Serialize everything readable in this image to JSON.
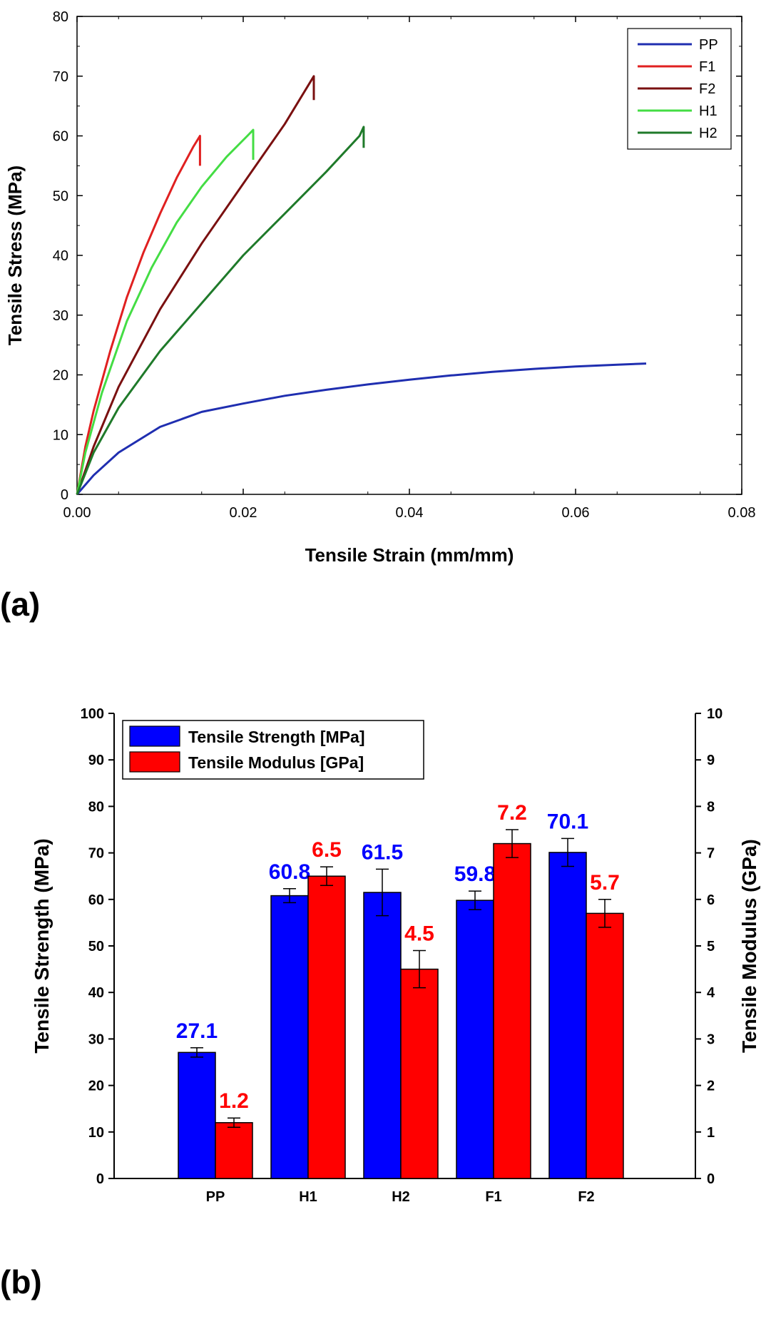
{
  "panels": {
    "a_label": "(a)",
    "b_label": "(b)"
  },
  "chart_data": [
    {
      "type": "line",
      "xlabel": "Tensile Strain (mm/mm)",
      "ylabel": "Tensile Stress (MPa)",
      "xlim": [
        0,
        0.08
      ],
      "ylim": [
        0,
        80
      ],
      "xticks": [
        "0.00",
        "0.02",
        "0.04",
        "0.06",
        "0.08"
      ],
      "yticks": [
        "0",
        "10",
        "20",
        "30",
        "40",
        "50",
        "60",
        "70",
        "80"
      ],
      "grid": false,
      "legend_position": "top-right",
      "series": [
        {
          "name": "PP",
          "color": "#1f2eb0",
          "x": [
            0,
            0.002,
            0.005,
            0.01,
            0.015,
            0.02,
            0.025,
            0.03,
            0.035,
            0.04,
            0.045,
            0.05,
            0.055,
            0.06,
            0.065,
            0.0685
          ],
          "y": [
            0,
            3.2,
            7.0,
            11.3,
            13.8,
            15.2,
            16.5,
            17.5,
            18.4,
            19.2,
            19.9,
            20.5,
            21.0,
            21.4,
            21.7,
            21.9
          ]
        },
        {
          "name": "F1",
          "color": "#e02020",
          "x": [
            0,
            0.001,
            0.002,
            0.004,
            0.006,
            0.008,
            0.01,
            0.012,
            0.014,
            0.0148,
            0.0148
          ],
          "y": [
            0,
            8,
            14,
            24,
            33,
            40.5,
            47,
            53,
            58.2,
            60,
            55
          ]
        },
        {
          "name": "F2",
          "color": "#7a1010",
          "x": [
            0,
            0.002,
            0.005,
            0.01,
            0.015,
            0.02,
            0.025,
            0.0285,
            0.0285
          ],
          "y": [
            0,
            8,
            18,
            31,
            42,
            52,
            62,
            70,
            66
          ]
        },
        {
          "name": "H1",
          "color": "#44dd44",
          "x": [
            0,
            0.001,
            0.003,
            0.006,
            0.009,
            0.012,
            0.015,
            0.018,
            0.0205,
            0.0212,
            0.0212
          ],
          "y": [
            0,
            7,
            17,
            29,
            38,
            45.5,
            51.5,
            56.5,
            60,
            61,
            56
          ]
        },
        {
          "name": "H2",
          "color": "#1f7a2a",
          "x": [
            0,
            0.002,
            0.005,
            0.01,
            0.015,
            0.02,
            0.025,
            0.03,
            0.034,
            0.0345,
            0.0345
          ],
          "y": [
            0,
            7,
            14.5,
            24,
            32,
            40,
            47,
            54,
            60,
            61.5,
            58
          ]
        }
      ]
    },
    {
      "type": "bar",
      "categories": [
        "PP",
        "H1",
        "H2",
        "F1",
        "F2"
      ],
      "ylabel": "Tensile Strength (MPa)",
      "y2label": "Tensile Modulus (GPa)",
      "ylim": [
        0,
        100
      ],
      "y2lim": [
        0,
        10
      ],
      "yticks": [
        "0",
        "10",
        "20",
        "30",
        "40",
        "50",
        "60",
        "70",
        "80",
        "90",
        "100"
      ],
      "y2ticks": [
        "0",
        "1",
        "2",
        "3",
        "4",
        "5",
        "6",
        "7",
        "8",
        "9",
        "10"
      ],
      "legend_position": "top-left",
      "series": [
        {
          "name": "Tensile Strength [MPa]",
          "axis": "left",
          "color": "#0000ff",
          "values": [
            27.1,
            60.8,
            61.5,
            59.8,
            70.1
          ],
          "errors": [
            1.0,
            1.5,
            5.0,
            2.0,
            3.0
          ],
          "labels": [
            "27.1",
            "60.8",
            "61.5",
            "59.8",
            "70.1"
          ]
        },
        {
          "name": "Tensile Modulus [GPa]",
          "axis": "right",
          "color": "#ff0000",
          "values": [
            1.2,
            6.5,
            4.5,
            7.2,
            5.7
          ],
          "errors": [
            0.1,
            0.2,
            0.4,
            0.3,
            0.3
          ],
          "labels": [
            "1.2",
            "6.5",
            "4.5",
            "7.2",
            "5.7"
          ]
        }
      ]
    }
  ]
}
